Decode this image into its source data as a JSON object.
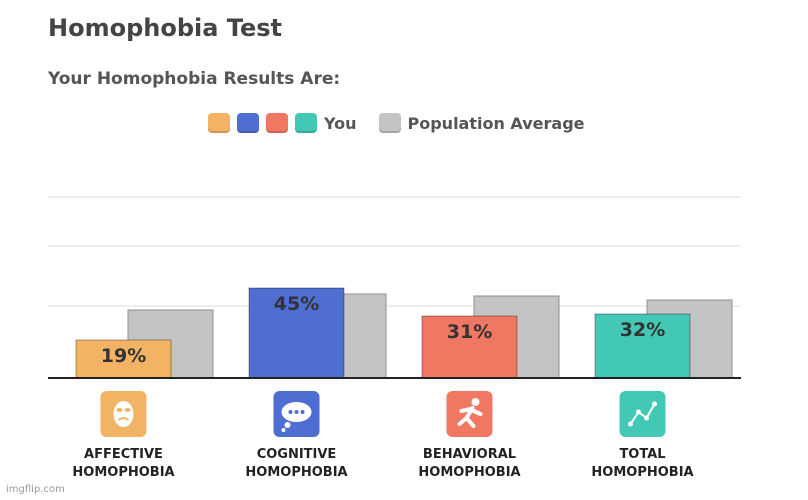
{
  "page": {
    "title": "Homophobia Test",
    "subtitle": "Your Homophobia Results Are:"
  },
  "legend": {
    "you_label": "You",
    "population_label": "Population Average"
  },
  "colors": {
    "affective": "#f2b464",
    "cognitive": "#4f6ed2",
    "behavioral": "#f07862",
    "total": "#44c8b6",
    "population": "#c2c4c6",
    "grid": "#dddddd",
    "axis": "#222222"
  },
  "watermark": "imgflip.com",
  "chart_data": {
    "type": "bar",
    "categories": [
      "AFFECTIVE HOMOPHOBIA",
      "COGNITIVE HOMOPHOBIA",
      "BEHAVIORAL HOMOPHOBIA",
      "TOTAL HOMOPHOBIA"
    ],
    "category_lines": [
      [
        "AFFECTIVE",
        "HOMOPHOBIA"
      ],
      [
        "COGNITIVE",
        "HOMOPHOBIA"
      ],
      [
        "BEHAVIORAL",
        "HOMOPHOBIA"
      ],
      [
        "TOTAL",
        "HOMOPHOBIA"
      ]
    ],
    "icons": [
      "mask-icon",
      "thought-bubble-icon",
      "running-person-icon",
      "chart-line-icon"
    ],
    "series": [
      {
        "name": "You",
        "values": [
          19,
          45,
          31,
          32
        ],
        "labels": [
          "19%",
          "45%",
          "31%",
          "32%"
        ]
      },
      {
        "name": "Population Average",
        "values": [
          34,
          42,
          41,
          39
        ]
      }
    ],
    "ylim": [
      0,
      120
    ],
    "grid": true,
    "legend_position": "top"
  }
}
